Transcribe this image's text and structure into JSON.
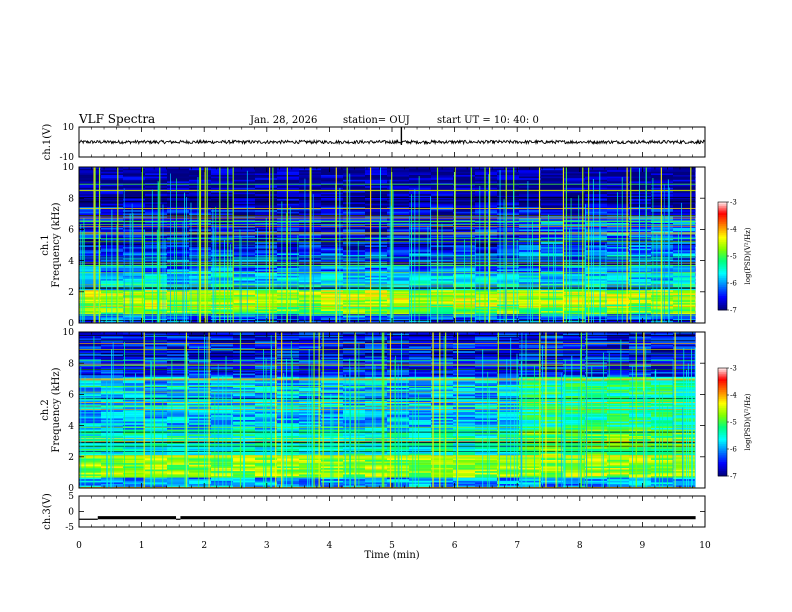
{
  "header": {
    "title": "VLF Spectra",
    "date": "Jan. 28, 2026",
    "station": "station= OUJ",
    "start": "start  UT =   10: 40: 0"
  },
  "colors": {
    "colormap": [
      "#000080",
      "#0000ff",
      "#0080ff",
      "#00ffff",
      "#00ff80",
      "#80ff00",
      "#ffff00",
      "#ff8000",
      "#ff0000",
      "#ffffff"
    ],
    "trace": "#000000"
  },
  "chart_data": [
    {
      "type": "line",
      "ylabel": "ch.1(V)",
      "ylim": [
        -10,
        10
      ],
      "yticks": [
        "10",
        "-10"
      ],
      "xlim": [
        0,
        10
      ],
      "description_values": {
        "baseline": 0,
        "spike_time_min": 5.15
      }
    },
    {
      "type": "heatmap",
      "ylabel_top": "ch.1",
      "ylabel": "Frequency (kHz)",
      "ylim": [
        0,
        10
      ],
      "yticks": [
        "0",
        "2",
        "4",
        "6",
        "8",
        "10"
      ],
      "xlim": [
        0,
        10
      ],
      "colorbar": {
        "label": "log(PSD)(V²/Hz)",
        "ticks": [
          "-3",
          "-4",
          "-5",
          "-6",
          "-7"
        ],
        "range": [
          -7,
          -3
        ]
      },
      "bands": [
        {
          "from_khz": 0,
          "to_khz": 0.6,
          "level": -6.3
        },
        {
          "from_khz": 0.6,
          "to_khz": 1.2,
          "level": -4.9
        },
        {
          "from_khz": 1.2,
          "to_khz": 2.2,
          "level": -4.6
        },
        {
          "from_khz": 2.2,
          "to_khz": 3.3,
          "level": -5.8
        },
        {
          "from_khz": 3.3,
          "to_khz": 4.5,
          "level": -6.2
        },
        {
          "from_khz": 4.5,
          "to_khz": 7.5,
          "level": -6.6
        },
        {
          "from_khz": 7.5,
          "to_khz": 10,
          "level": -6.9
        }
      ]
    },
    {
      "type": "heatmap",
      "ylabel_top": "ch.2",
      "ylabel": "Frequency (kHz)",
      "ylim": [
        0,
        10
      ],
      "yticks": [
        "0",
        "2",
        "4",
        "6",
        "8",
        "10"
      ],
      "xlim": [
        0,
        10
      ],
      "colorbar": {
        "label": "log(PSD)(V²/Hz)",
        "ticks": [
          "-3",
          "-4",
          "-5",
          "-6",
          "-7"
        ],
        "range": [
          -7,
          -3
        ]
      },
      "bands": [
        {
          "from_khz": 0,
          "to_khz": 0.7,
          "level": -6.0
        },
        {
          "from_khz": 0.7,
          "to_khz": 2.2,
          "level": -4.7
        },
        {
          "from_khz": 2.2,
          "to_khz": 3.8,
          "level": -5.5
        },
        {
          "from_khz": 3.8,
          "to_khz": 7.2,
          "level": -5.9
        },
        {
          "from_khz": 7.2,
          "to_khz": 10,
          "level": -6.5
        }
      ],
      "change_time_min": 6.8
    },
    {
      "type": "line",
      "ylabel": "ch.3(V)",
      "ylim": [
        -5,
        5
      ],
      "yticks": [
        "5",
        "0",
        "-5"
      ],
      "xlim": [
        0,
        10
      ],
      "xlabel": "Time (min)",
      "xticks": [
        "0",
        "1",
        "2",
        "3",
        "4",
        "5",
        "6",
        "7",
        "8",
        "9",
        "10"
      ],
      "segments": [
        {
          "from_min": 0,
          "to_min": 0.3,
          "value": -2.5
        },
        {
          "from_min": 0.3,
          "to_min": 1.55,
          "value": -2.0
        },
        {
          "from_min": 1.55,
          "to_min": 1.62,
          "value": -2.5
        },
        {
          "from_min": 1.62,
          "to_min": 9.85,
          "value": -2.0
        }
      ]
    }
  ]
}
